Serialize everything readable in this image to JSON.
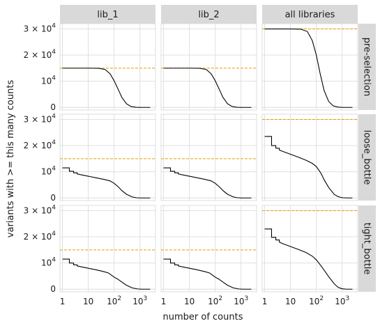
{
  "chart_data": {
    "type": "line",
    "xlabel": "number of counts",
    "ylabel": "variants with >= this many counts",
    "x_scale": "log",
    "xlim": [
      0.8,
      4000
    ],
    "ylim": [
      -1000,
      32000
    ],
    "x_ticks": [
      {
        "value": 1,
        "base": "1",
        "exp": ""
      },
      {
        "value": 10,
        "base": "10",
        "exp": ""
      },
      {
        "value": 100,
        "base": "10",
        "exp": "2"
      },
      {
        "value": 1000,
        "base": "10",
        "exp": "3"
      }
    ],
    "y_ticks": [
      {
        "value": 0,
        "base": "0",
        "exp": "",
        "mult": ""
      },
      {
        "value": 10000,
        "base": "10",
        "exp": "4",
        "mult": ""
      },
      {
        "value": 20000,
        "base": "2 × 10",
        "exp": "4",
        "mult": ""
      },
      {
        "value": 30000,
        "base": "3 × 10",
        "exp": "4",
        "mult": ""
      }
    ],
    "columns": [
      "lib_1",
      "lib_2",
      "all libraries"
    ],
    "rows": [
      "pre-selection",
      "loose_bottle",
      "tight_bottle"
    ],
    "colors": {
      "curve": "#000000",
      "reference": "#e69f00",
      "strip": "#d9d9d9",
      "grid": "#dcdcdc"
    },
    "panels": [
      {
        "row": 0,
        "col": 0,
        "reference": 15000,
        "curve": [
          [
            1,
            15000
          ],
          [
            10,
            15000
          ],
          [
            25,
            14950
          ],
          [
            45,
            14500
          ],
          [
            70,
            12800
          ],
          [
            100,
            10200
          ],
          [
            150,
            6500
          ],
          [
            200,
            3800
          ],
          [
            300,
            1400
          ],
          [
            450,
            350
          ],
          [
            700,
            60
          ],
          [
            1100,
            0
          ],
          [
            2500,
            0
          ]
        ]
      },
      {
        "row": 0,
        "col": 1,
        "reference": 15000,
        "curve": [
          [
            1,
            15000
          ],
          [
            10,
            15000
          ],
          [
            25,
            14950
          ],
          [
            45,
            14500
          ],
          [
            70,
            12800
          ],
          [
            100,
            10200
          ],
          [
            150,
            6500
          ],
          [
            200,
            3800
          ],
          [
            300,
            1400
          ],
          [
            450,
            350
          ],
          [
            700,
            60
          ],
          [
            1100,
            0
          ],
          [
            2500,
            0
          ]
        ]
      },
      {
        "row": 0,
        "col": 2,
        "reference": 30000,
        "curve": [
          [
            1,
            30000
          ],
          [
            10,
            30000
          ],
          [
            25,
            29900
          ],
          [
            45,
            29000
          ],
          [
            70,
            25500
          ],
          [
            100,
            20000
          ],
          [
            140,
            13000
          ],
          [
            200,
            6500
          ],
          [
            300,
            2300
          ],
          [
            450,
            600
          ],
          [
            700,
            120
          ],
          [
            1100,
            0
          ],
          [
            2500,
            0
          ]
        ]
      },
      {
        "row": 1,
        "col": 0,
        "reference": 15000,
        "curve": [
          [
            1,
            11500
          ],
          [
            1.85,
            11500
          ],
          [
            1.85,
            10200
          ],
          [
            2.7,
            10200
          ],
          [
            2.7,
            9600
          ],
          [
            3.7,
            9600
          ],
          [
            3.7,
            9200
          ],
          [
            5,
            8900
          ],
          [
            10,
            8300
          ],
          [
            20,
            7700
          ],
          [
            40,
            7100
          ],
          [
            70,
            6500
          ],
          [
            100,
            5600
          ],
          [
            150,
            4100
          ],
          [
            200,
            2800
          ],
          [
            300,
            1400
          ],
          [
            500,
            400
          ],
          [
            700,
            100
          ],
          [
            1000,
            0
          ],
          [
            2500,
            0
          ]
        ]
      },
      {
        "row": 1,
        "col": 1,
        "reference": 15000,
        "curve": [
          [
            1,
            11500
          ],
          [
            1.85,
            11500
          ],
          [
            1.85,
            10200
          ],
          [
            2.7,
            10200
          ],
          [
            2.7,
            9600
          ],
          [
            3.7,
            9600
          ],
          [
            3.7,
            9200
          ],
          [
            5,
            8900
          ],
          [
            10,
            8300
          ],
          [
            20,
            7700
          ],
          [
            40,
            7100
          ],
          [
            70,
            6500
          ],
          [
            100,
            5600
          ],
          [
            150,
            4100
          ],
          [
            200,
            2800
          ],
          [
            300,
            1400
          ],
          [
            500,
            400
          ],
          [
            700,
            100
          ],
          [
            1000,
            0
          ],
          [
            2500,
            0
          ]
        ]
      },
      {
        "row": 1,
        "col": 2,
        "reference": 30000,
        "curve": [
          [
            1,
            23500
          ],
          [
            1.85,
            23500
          ],
          [
            1.85,
            20000
          ],
          [
            2.7,
            20000
          ],
          [
            2.7,
            19000
          ],
          [
            3.7,
            19000
          ],
          [
            3.7,
            18300
          ],
          [
            5,
            17800
          ],
          [
            10,
            16700
          ],
          [
            20,
            15600
          ],
          [
            40,
            14400
          ],
          [
            70,
            13200
          ],
          [
            100,
            12000
          ],
          [
            150,
            9500
          ],
          [
            200,
            7000
          ],
          [
            300,
            4000
          ],
          [
            500,
            1300
          ],
          [
            700,
            500
          ],
          [
            1000,
            100
          ],
          [
            1500,
            0
          ],
          [
            2500,
            0
          ]
        ]
      },
      {
        "row": 2,
        "col": 0,
        "reference": 15000,
        "curve": [
          [
            1,
            11500
          ],
          [
            1.85,
            11500
          ],
          [
            1.85,
            10000
          ],
          [
            2.7,
            10000
          ],
          [
            2.7,
            9300
          ],
          [
            3.7,
            9300
          ],
          [
            3.7,
            8900
          ],
          [
            5,
            8600
          ],
          [
            10,
            8000
          ],
          [
            20,
            7400
          ],
          [
            40,
            6700
          ],
          [
            60,
            6200
          ],
          [
            80,
            5300
          ],
          [
            100,
            4600
          ],
          [
            140,
            3800
          ],
          [
            200,
            2700
          ],
          [
            300,
            1500
          ],
          [
            500,
            500
          ],
          [
            800,
            100
          ],
          [
            1200,
            0
          ],
          [
            2500,
            0
          ]
        ]
      },
      {
        "row": 2,
        "col": 1,
        "reference": 15000,
        "curve": [
          [
            1,
            11500
          ],
          [
            1.85,
            11500
          ],
          [
            1.85,
            10000
          ],
          [
            2.7,
            10000
          ],
          [
            2.7,
            9300
          ],
          [
            3.7,
            9300
          ],
          [
            3.7,
            8900
          ],
          [
            5,
            8600
          ],
          [
            10,
            8000
          ],
          [
            20,
            7400
          ],
          [
            40,
            6700
          ],
          [
            60,
            6200
          ],
          [
            80,
            5300
          ],
          [
            100,
            4600
          ],
          [
            140,
            3800
          ],
          [
            200,
            2700
          ],
          [
            300,
            1500
          ],
          [
            500,
            500
          ],
          [
            800,
            100
          ],
          [
            1200,
            0
          ],
          [
            2500,
            0
          ]
        ]
      },
      {
        "row": 2,
        "col": 2,
        "reference": 30000,
        "curve": [
          [
            1,
            23000
          ],
          [
            1.85,
            23000
          ],
          [
            1.85,
            19800
          ],
          [
            2.7,
            19800
          ],
          [
            2.7,
            18800
          ],
          [
            3.7,
            18800
          ],
          [
            3.7,
            18000
          ],
          [
            5,
            17400
          ],
          [
            10,
            16300
          ],
          [
            20,
            15200
          ],
          [
            40,
            14000
          ],
          [
            70,
            12600
          ],
          [
            100,
            11200
          ],
          [
            150,
            9000
          ],
          [
            200,
            7300
          ],
          [
            300,
            4800
          ],
          [
            500,
            2000
          ],
          [
            700,
            700
          ],
          [
            1000,
            150
          ],
          [
            1500,
            0
          ],
          [
            2500,
            0
          ]
        ]
      }
    ]
  }
}
